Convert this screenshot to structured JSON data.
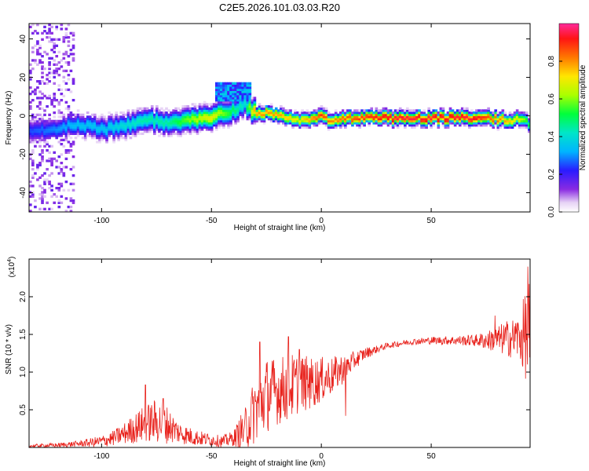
{
  "title": "C2E5.2026.101.03.03.R20",
  "chart_data": [
    {
      "type": "heatmap",
      "xlabel": "Height of straight line (km)",
      "ylabel": "Frequency (Hz)",
      "xlim": [
        -133,
        95
      ],
      "ylim": [
        -50,
        48
      ],
      "x_ticks": [
        -100,
        -50,
        0,
        50
      ],
      "y_ticks": [
        -40,
        -20,
        0,
        20,
        40
      ],
      "colorbar": {
        "label": "Normalized spectral amplitude",
        "range": [
          0,
          1
        ],
        "ticks": [
          "0.0",
          "0.2",
          "0.4",
          "0.6",
          "0.8"
        ]
      },
      "ridge": {
        "x": [
          -133,
          -120,
          -110,
          -100,
          -90,
          -80,
          -70,
          -60,
          -50,
          -40,
          -35,
          -30,
          -20,
          -10,
          -5,
          0,
          5,
          10,
          20,
          30,
          50,
          70,
          90,
          95
        ],
        "frequency": [
          -8,
          -6,
          -4,
          -7,
          -5,
          -2,
          -3,
          -2,
          0,
          3,
          6,
          2,
          1,
          -2,
          -1,
          0,
          -3,
          -1,
          -1,
          -1,
          -1,
          -1,
          -2,
          -4
        ],
        "amplitude": [
          0.25,
          0.3,
          0.35,
          0.35,
          0.4,
          0.45,
          0.45,
          0.6,
          0.7,
          0.5,
          0.4,
          0.8,
          0.8,
          0.7,
          0.8,
          0.9,
          0.8,
          0.85,
          0.9,
          0.95,
          0.95,
          0.95,
          0.7,
          0.5
        ]
      },
      "secondary_patch": {
        "x": [
          -48,
          -32
        ],
        "frequency": [
          8,
          18
        ]
      },
      "noise_region": {
        "x": [
          -133,
          -112
        ],
        "frequency": [
          -50,
          48
        ]
      }
    },
    {
      "type": "line",
      "xlabel": "Height of straight line (km)",
      "ylabel": "SNR (10 * v/v)",
      "y_scale_label": "(x10",
      "y_scale_exponent": "4",
      "xlim": [
        -133,
        95
      ],
      "ylim": [
        0,
        2.5
      ],
      "x_ticks": [
        -100,
        -50,
        0,
        50
      ],
      "y_ticks": [
        0.5,
        1.0,
        1.5,
        2.0
      ],
      "color": "#e8221c",
      "x": [
        -133,
        -120,
        -110,
        -100,
        -95,
        -90,
        -85,
        -80,
        -75,
        -70,
        -65,
        -60,
        -55,
        -50,
        -45,
        -40,
        -35,
        -30,
        -25,
        -20,
        -15,
        -10,
        -5,
        0,
        5,
        10,
        15,
        20,
        25,
        30,
        40,
        50,
        60,
        70,
        75,
        80,
        85,
        90,
        93,
        95
      ],
      "mean": [
        0.02,
        0.03,
        0.05,
        0.08,
        0.12,
        0.18,
        0.25,
        0.32,
        0.35,
        0.3,
        0.2,
        0.15,
        0.12,
        0.1,
        0.08,
        0.12,
        0.25,
        0.5,
        0.7,
        0.75,
        0.8,
        0.85,
        0.85,
        0.9,
        0.95,
        1.05,
        1.15,
        1.25,
        1.3,
        1.35,
        1.4,
        1.42,
        1.42,
        1.42,
        1.42,
        1.43,
        1.45,
        1.45,
        1.5,
        1.4
      ],
      "spread": [
        0.02,
        0.03,
        0.04,
        0.08,
        0.1,
        0.14,
        0.2,
        0.25,
        0.3,
        0.25,
        0.15,
        0.12,
        0.1,
        0.08,
        0.08,
        0.1,
        0.3,
        0.45,
        0.5,
        0.45,
        0.45,
        0.4,
        0.35,
        0.3,
        0.25,
        0.2,
        0.12,
        0.08,
        0.05,
        0.04,
        0.04,
        0.05,
        0.06,
        0.08,
        0.12,
        0.18,
        0.25,
        0.3,
        0.6,
        0.9
      ],
      "peaks": [
        [
          -80,
          0.83
        ],
        [
          -72,
          0.65
        ],
        [
          -35,
          0.3
        ],
        [
          -28,
          1.4
        ],
        [
          -15,
          1.47
        ],
        [
          -10,
          1.3
        ],
        [
          -5,
          1.05
        ],
        [
          11,
          0.42
        ],
        [
          79,
          1.75
        ],
        [
          89,
          1.65
        ],
        [
          94,
          2.4
        ]
      ]
    }
  ]
}
